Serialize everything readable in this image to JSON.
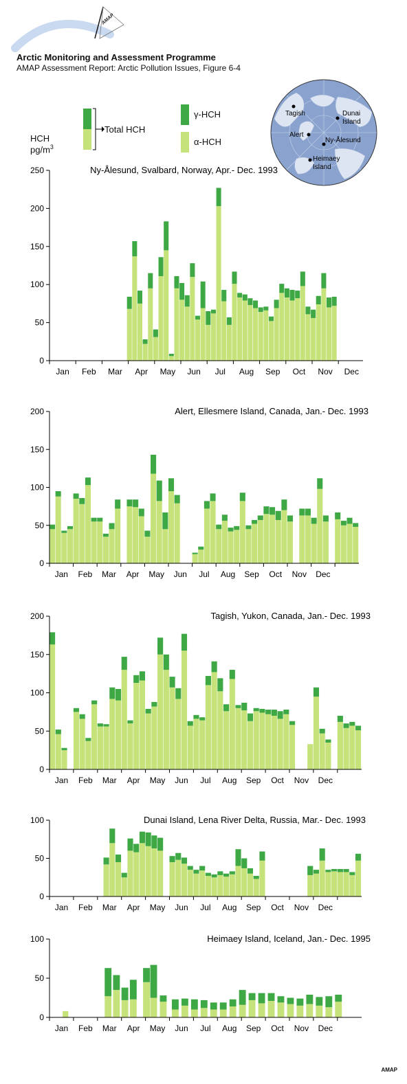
{
  "header": {
    "logo_text": "AMAP",
    "org_title": "Arctic Monitoring and Assessment Programme",
    "report": "AMAP Assessment Report: Arctic Pollution Issues, Figure 6-4"
  },
  "legend": {
    "total_label": "Total HCH",
    "gamma_label": "γ-HCH",
    "alpha_label": "α-HCH",
    "y_unit_line1": "HCH",
    "y_unit_line2": "pg/m",
    "y_unit_sup": "3"
  },
  "colors": {
    "alpha": "#c6e27a",
    "gamma": "#3ea845",
    "map_sea": "#8aa3ce",
    "axis": "#000000"
  },
  "map": {
    "stations": [
      "Tagish",
      "Dunai Island",
      "Alert",
      "Ny-Ålesund",
      "Heimaey Island"
    ]
  },
  "footer": {
    "credit": "AMAP"
  },
  "chart_data": [
    {
      "type": "bar",
      "stacked": true,
      "title": "Ny-Ålesund, Svalbard, Norway, Apr.- Dec. 1993",
      "ylim": [
        0,
        250
      ],
      "yticks": [
        0,
        50,
        100,
        150,
        200,
        250
      ],
      "months": [
        "Jan",
        "Feb",
        "Mar",
        "Apr",
        "May",
        "Jun",
        "Jul",
        "Aug",
        "Sep",
        "Oct",
        "Nov",
        "Dec"
      ],
      "series": [
        {
          "name": "α-HCH"
        },
        {
          "name": "γ-HCH"
        }
      ],
      "bars": [
        [
          2.95,
          3.15,
          68,
          16
        ],
        [
          3.15,
          3.35,
          137,
          20
        ],
        [
          3.35,
          3.55,
          75,
          17
        ],
        [
          3.55,
          3.75,
          22,
          6
        ],
        [
          3.75,
          3.95,
          95,
          20
        ],
        [
          3.95,
          4.15,
          31,
          10
        ],
        [
          4.15,
          4.35,
          111,
          25
        ],
        [
          4.35,
          4.55,
          145,
          38
        ],
        [
          4.55,
          4.75,
          6,
          3
        ],
        [
          4.75,
          4.95,
          95,
          16
        ],
        [
          4.95,
          5.15,
          80,
          22
        ],
        [
          5.15,
          5.35,
          71,
          15
        ],
        [
          5.35,
          5.55,
          110,
          18
        ],
        [
          5.55,
          5.75,
          54,
          5
        ],
        [
          5.75,
          5.95,
          69,
          35
        ],
        [
          5.95,
          6.15,
          47,
          18
        ],
        [
          6.15,
          6.35,
          62,
          5
        ],
        [
          6.35,
          6.55,
          203,
          24
        ],
        [
          6.55,
          6.75,
          78,
          15
        ],
        [
          6.75,
          6.95,
          47,
          10
        ],
        [
          6.95,
          7.15,
          101,
          16
        ],
        [
          7.15,
          7.35,
          83,
          6
        ],
        [
          7.35,
          7.55,
          79,
          8
        ],
        [
          7.55,
          7.75,
          73,
          9
        ],
        [
          7.75,
          7.95,
          69,
          10
        ],
        [
          7.95,
          8.15,
          64,
          6
        ],
        [
          8.15,
          8.35,
          66,
          5
        ],
        [
          8.35,
          8.55,
          52,
          6
        ],
        [
          8.55,
          8.75,
          69,
          11
        ],
        [
          8.75,
          8.95,
          89,
          12
        ],
        [
          8.95,
          9.15,
          83,
          12
        ],
        [
          9.15,
          9.35,
          79,
          14
        ],
        [
          9.35,
          9.55,
          82,
          10
        ],
        [
          9.55,
          9.75,
          98,
          19
        ],
        [
          9.75,
          9.95,
          61,
          10
        ],
        [
          9.95,
          10.15,
          56,
          11
        ],
        [
          10.15,
          10.35,
          74,
          11
        ],
        [
          10.35,
          10.55,
          95,
          20
        ],
        [
          10.55,
          10.75,
          70,
          13
        ],
        [
          10.75,
          10.95,
          72,
          12
        ]
      ]
    },
    {
      "type": "bar",
      "stacked": true,
      "title": "Alert, Ellesmere Island, Canada, Jan.- Dec. 1993",
      "ylim": [
        0,
        200
      ],
      "yticks": [
        0,
        50,
        100,
        150,
        200
      ],
      "months": [
        "Jan",
        "Feb",
        "Mar",
        "Apr",
        "May",
        "Jun",
        "Jul",
        "Aug",
        "Sep",
        "Oct",
        "Nov",
        "Dec"
      ],
      "series": [
        {
          "name": "α-HCH"
        },
        {
          "name": "γ-HCH"
        }
      ],
      "bars": [
        [
          0,
          0.25,
          45,
          6
        ],
        [
          0.25,
          0.5,
          88,
          7
        ],
        [
          0.5,
          0.75,
          40,
          3
        ],
        [
          0.75,
          1,
          45,
          4
        ],
        [
          1,
          1.25,
          85,
          7
        ],
        [
          1.25,
          1.5,
          78,
          8
        ],
        [
          1.5,
          1.75,
          103,
          10
        ],
        [
          1.75,
          2,
          55,
          5
        ],
        [
          2,
          2.25,
          55,
          5
        ],
        [
          2.25,
          2.5,
          35,
          4
        ],
        [
          2.5,
          2.75,
          45,
          8
        ],
        [
          2.75,
          3,
          72,
          12
        ],
        [
          3.25,
          3.5,
          75,
          9
        ],
        [
          3.5,
          3.75,
          74,
          10
        ],
        [
          3.75,
          4,
          62,
          10
        ],
        [
          4,
          4.25,
          35,
          8
        ],
        [
          4.25,
          4.5,
          118,
          25
        ],
        [
          4.5,
          4.75,
          82,
          27
        ],
        [
          4.75,
          5,
          45,
          22
        ],
        [
          5,
          5.25,
          95,
          17
        ],
        [
          5.25,
          5.5,
          79,
          11
        ],
        [
          6,
          6.25,
          12,
          2
        ],
        [
          6.25,
          6.5,
          18,
          4
        ],
        [
          6.5,
          6.75,
          72,
          10
        ],
        [
          6.75,
          7,
          82,
          10
        ],
        [
          7,
          7.25,
          45,
          6
        ],
        [
          7.25,
          7.5,
          56,
          8
        ],
        [
          7.5,
          7.75,
          42,
          5
        ],
        [
          7.75,
          8,
          44,
          5
        ],
        [
          8,
          8.25,
          82,
          11
        ],
        [
          8.25,
          8.5,
          45,
          5
        ],
        [
          8.5,
          8.75,
          52,
          5
        ],
        [
          8.75,
          9,
          57,
          6
        ],
        [
          9,
          9.25,
          65,
          10
        ],
        [
          9.25,
          9.5,
          64,
          10
        ],
        [
          9.5,
          9.75,
          57,
          12
        ],
        [
          9.75,
          10,
          70,
          14
        ],
        [
          10,
          10.25,
          55,
          8
        ],
        [
          10.5,
          10.75,
          63,
          9
        ],
        [
          10.75,
          11,
          63,
          9
        ],
        [
          11,
          11.25,
          52,
          8
        ],
        [
          11.25,
          11.5,
          98,
          14
        ],
        [
          11.5,
          11.75,
          55,
          8
        ],
        [
          12,
          12.25,
          58,
          9
        ],
        [
          12.25,
          12.5,
          50,
          6
        ],
        [
          12.5,
          12.75,
          52,
          8
        ],
        [
          12.75,
          13,
          48,
          5
        ]
      ]
    },
    {
      "type": "bar",
      "stacked": true,
      "title": "Tagish, Yukon, Canada, Jan.- Dec. 1993",
      "ylim": [
        0,
        200
      ],
      "yticks": [
        0,
        50,
        100,
        150,
        200
      ],
      "months": [
        "Jan",
        "Feb",
        "Mar",
        "Apr",
        "May",
        "Jun",
        "Jul",
        "Aug",
        "Sep",
        "Oct",
        "Nov",
        "Dec"
      ],
      "series": [
        {
          "name": "α-HCH"
        },
        {
          "name": "γ-HCH"
        }
      ],
      "bars": [
        [
          0,
          0.25,
          163,
          16
        ],
        [
          0.25,
          0.5,
          46,
          6
        ],
        [
          0.5,
          0.75,
          25,
          3
        ],
        [
          1,
          1.25,
          75,
          5
        ],
        [
          1.25,
          1.5,
          66,
          6
        ],
        [
          1.5,
          1.75,
          37,
          4
        ],
        [
          1.75,
          2,
          85,
          5
        ],
        [
          2,
          2.25,
          56,
          4
        ],
        [
          2.25,
          2.5,
          56,
          3
        ],
        [
          2.5,
          2.75,
          92,
          15
        ],
        [
          2.75,
          3,
          90,
          15
        ],
        [
          3,
          3.25,
          130,
          17
        ],
        [
          3.25,
          3.5,
          60,
          4
        ],
        [
          3.5,
          3.75,
          113,
          10
        ],
        [
          3.75,
          4,
          116,
          12
        ],
        [
          4,
          4.25,
          73,
          6
        ],
        [
          4.25,
          4.5,
          82,
          6
        ],
        [
          4.5,
          4.75,
          150,
          22
        ],
        [
          4.75,
          5,
          130,
          20
        ],
        [
          5,
          5.25,
          107,
          14
        ],
        [
          5.25,
          5.5,
          92,
          14
        ],
        [
          5.5,
          5.75,
          155,
          22
        ],
        [
          5.75,
          6,
          57,
          6
        ],
        [
          6,
          6.25,
          66,
          5
        ],
        [
          6.25,
          6.5,
          64,
          4
        ],
        [
          6.5,
          6.75,
          110,
          12
        ],
        [
          6.75,
          7,
          127,
          14
        ],
        [
          7,
          7.25,
          102,
          17
        ],
        [
          7.25,
          7.5,
          76,
          9
        ],
        [
          7.5,
          7.75,
          118,
          12
        ],
        [
          7.75,
          8,
          80,
          4
        ],
        [
          8,
          8.25,
          77,
          10
        ],
        [
          8.25,
          8.5,
          63,
          10
        ],
        [
          8.5,
          8.75,
          76,
          4
        ],
        [
          8.75,
          9,
          74,
          5
        ],
        [
          9,
          9.25,
          72,
          6
        ],
        [
          9.25,
          9.5,
          70,
          8
        ],
        [
          9.5,
          9.75,
          66,
          10
        ],
        [
          9.75,
          10,
          72,
          6
        ],
        [
          10,
          10.25,
          58,
          5
        ],
        [
          10.75,
          11,
          33,
          0
        ],
        [
          11,
          11.25,
          95,
          12
        ],
        [
          11.25,
          11.5,
          47,
          6
        ],
        [
          11.5,
          11.75,
          35,
          4
        ],
        [
          12,
          12.25,
          62,
          8
        ],
        [
          12.25,
          12.5,
          54,
          6
        ],
        [
          12.5,
          12.75,
          57,
          5
        ],
        [
          12.75,
          13,
          51,
          6
        ]
      ]
    },
    {
      "type": "bar",
      "stacked": true,
      "title": "Dunai Island, Lena River Delta, Russia, Mar.- Dec. 1993",
      "ylim": [
        0,
        100
      ],
      "yticks": [
        0,
        50,
        100
      ],
      "months": [
        "Jan",
        "Feb",
        "Mar",
        "Apr",
        "May",
        "Jun",
        "Jul",
        "Aug",
        "Sep",
        "Oct",
        "Nov",
        "Dec"
      ],
      "series": [
        {
          "name": "α-HCH"
        },
        {
          "name": "γ-HCH"
        }
      ],
      "bars": [
        [
          2.25,
          2.5,
          42,
          9
        ],
        [
          2.5,
          2.75,
          70,
          19
        ],
        [
          2.75,
          3,
          45,
          10
        ],
        [
          3,
          3.25,
          25,
          6
        ],
        [
          3.25,
          3.5,
          60,
          16
        ],
        [
          3.5,
          3.75,
          58,
          11
        ],
        [
          3.75,
          4,
          70,
          15
        ],
        [
          4,
          4.25,
          66,
          18
        ],
        [
          4.25,
          4.5,
          63,
          17
        ],
        [
          4.5,
          4.75,
          60,
          17
        ],
        [
          5,
          5.25,
          45,
          8
        ],
        [
          5.25,
          5.5,
          48,
          9
        ],
        [
          5.5,
          5.75,
          43,
          8
        ],
        [
          5.75,
          6,
          35,
          5
        ],
        [
          6,
          6.25,
          30,
          5
        ],
        [
          6.25,
          6.5,
          34,
          6
        ],
        [
          6.5,
          6.75,
          27,
          4
        ],
        [
          6.75,
          7,
          25,
          4
        ],
        [
          7,
          7.25,
          28,
          5
        ],
        [
          7.25,
          7.5,
          26,
          4
        ],
        [
          7.5,
          7.75,
          29,
          4
        ],
        [
          7.75,
          8,
          40,
          22
        ],
        [
          8,
          8.25,
          37,
          13
        ],
        [
          8.25,
          8.5,
          30,
          7
        ],
        [
          8.5,
          8.75,
          23,
          4
        ],
        [
          8.75,
          9,
          47,
          12
        ],
        [
          10.75,
          11,
          28,
          12
        ],
        [
          11,
          11.25,
          30,
          5
        ],
        [
          11.25,
          11.5,
          47,
          16
        ],
        [
          11.5,
          11.75,
          32,
          3
        ],
        [
          11.75,
          12,
          33,
          3
        ],
        [
          12,
          12.25,
          32,
          4
        ],
        [
          12.25,
          12.5,
          32,
          4
        ],
        [
          12.5,
          12.75,
          28,
          4
        ],
        [
          12.75,
          13,
          47,
          9
        ]
      ]
    },
    {
      "type": "bar",
      "stacked": true,
      "title": "Heimaey Island, Iceland, Jan.- Dec. 1995",
      "ylim": [
        0,
        100
      ],
      "yticks": [
        0,
        50,
        100
      ],
      "months": [
        "Jan",
        "Feb",
        "Mar",
        "Apr",
        "May",
        "Jun",
        "Jul",
        "Aug",
        "Sep",
        "Oct",
        "Nov",
        "Dec"
      ],
      "series": [
        {
          "name": "α-HCH"
        },
        {
          "name": "γ-HCH"
        }
      ],
      "bars": [
        [
          0.55,
          0.8,
          8,
          0
        ],
        [
          2.3,
          2.6,
          27,
          36
        ],
        [
          2.65,
          2.95,
          35,
          19
        ],
        [
          3,
          3.3,
          22,
          16
        ],
        [
          3.35,
          3.65,
          23,
          25
        ],
        [
          3.9,
          4.2,
          45,
          18
        ],
        [
          4.2,
          4.5,
          25,
          42
        ],
        [
          4.6,
          4.9,
          20,
          8
        ],
        [
          5.1,
          5.4,
          10,
          13
        ],
        [
          5.5,
          5.8,
          15,
          9
        ],
        [
          5.9,
          6.2,
          10,
          13
        ],
        [
          6.3,
          6.6,
          12,
          10
        ],
        [
          6.7,
          7,
          10,
          9
        ],
        [
          7.1,
          7.4,
          10,
          9
        ],
        [
          7.5,
          7.8,
          14,
          9
        ],
        [
          7.9,
          8.2,
          16,
          19
        ],
        [
          8.3,
          8.6,
          22,
          9
        ],
        [
          8.7,
          9,
          18,
          13
        ],
        [
          9.1,
          9.4,
          21,
          10
        ],
        [
          9.5,
          9.8,
          19,
          8
        ],
        [
          9.9,
          10.2,
          17,
          8
        ],
        [
          10.3,
          10.6,
          15,
          9
        ],
        [
          10.7,
          11,
          17,
          12
        ],
        [
          11.1,
          11.4,
          15,
          11
        ],
        [
          11.5,
          11.8,
          13,
          14
        ],
        [
          11.9,
          12.2,
          20,
          9
        ]
      ]
    }
  ]
}
